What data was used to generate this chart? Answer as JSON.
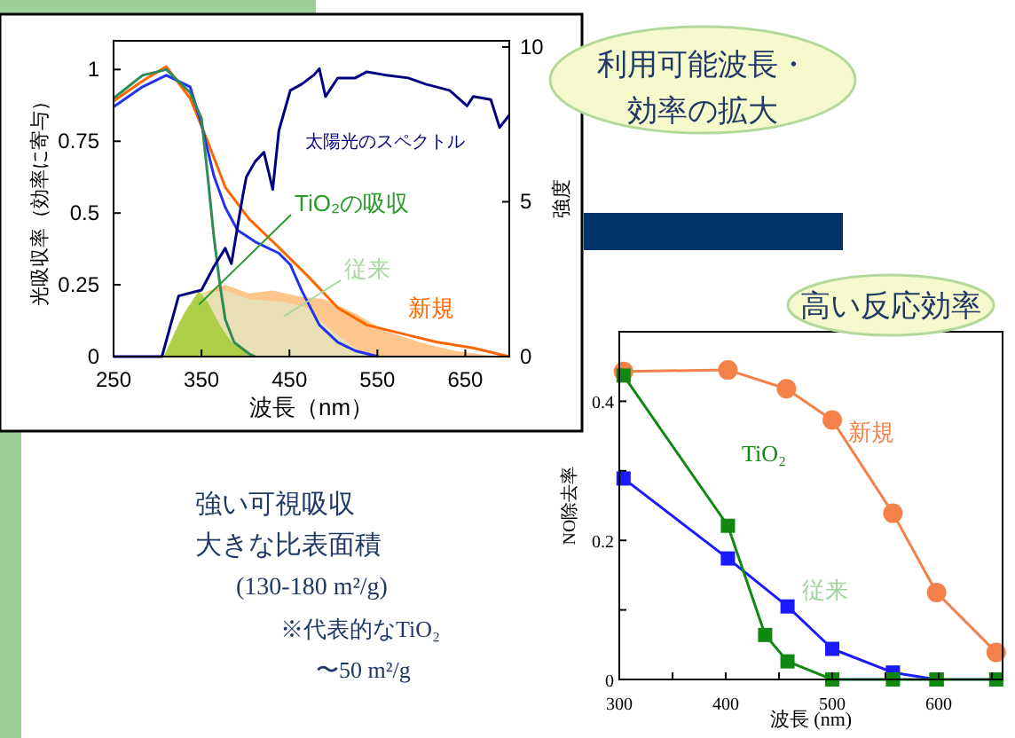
{
  "chart_data": [
    {
      "type": "line",
      "xlabel": "波長（nm）",
      "ylabel": "光吸収率（効率に寄与）",
      "y2label": "強度",
      "xlim": [
        250,
        700
      ],
      "xticks": [
        250,
        350,
        450,
        550,
        650
      ],
      "ylim": [
        0,
        1.1
      ],
      "yticks": [
        0,
        0.25,
        0.5,
        0.75,
        1
      ],
      "y2lim": [
        0,
        10.2
      ],
      "y2ticks": [
        0,
        5,
        10
      ],
      "grid": false,
      "legend": false,
      "series": [
        {
          "type": "area",
          "name": "新規",
          "color": "#fcc080",
          "x": [
            307,
            350,
            377,
            404,
            431,
            460,
            490,
            525,
            558,
            598,
            638,
            672,
            685
          ],
          "values": [
            0,
            0.22,
            0.25,
            0.22,
            0.23,
            0.21,
            0.2,
            0.15,
            0.09,
            0.05,
            0.02,
            0.006,
            0
          ]
        },
        {
          "type": "area",
          "name": "従来",
          "color": "#e6e2b8",
          "x": [
            307,
            324,
            350,
            377,
            404,
            444,
            471,
            498,
            525,
            545
          ],
          "values": [
            0,
            0.12,
            0.22,
            0.23,
            0.2,
            0.19,
            0.17,
            0.09,
            0.03,
            0
          ]
        },
        {
          "type": "area",
          "name": "TiO₂の吸収",
          "color": "#a8cc3c",
          "x": [
            307,
            330,
            347,
            357,
            371,
            384,
            404,
            411
          ],
          "values": [
            0,
            0.15,
            0.23,
            0.19,
            0.11,
            0.05,
            0.01,
            0
          ]
        },
        {
          "type": "line",
          "color": "#ff6600",
          "x": [
            250,
            283,
            310,
            337,
            357,
            377,
            404,
            438,
            471,
            505,
            538,
            578,
            618,
            659,
            686,
            700
          ],
          "values": [
            0.89,
            0.96,
            1.01,
            0.9,
            0.75,
            0.59,
            0.48,
            0.38,
            0.28,
            0.17,
            0.11,
            0.08,
            0.05,
            0.03,
            0.01,
            0
          ]
        },
        {
          "type": "line",
          "color": "#2233ee",
          "x": [
            250,
            283,
            310,
            337,
            350,
            364,
            377,
            391,
            411,
            438,
            451,
            464,
            484,
            505,
            525,
            551
          ],
          "values": [
            0.87,
            0.94,
            0.98,
            0.94,
            0.81,
            0.63,
            0.52,
            0.44,
            0.4,
            0.36,
            0.32,
            0.23,
            0.11,
            0.05,
            0.02,
            0
          ]
        },
        {
          "type": "line",
          "color": "#2e8b57",
          "x": [
            250,
            283,
            310,
            337,
            350,
            357,
            364,
            371,
            377,
            387,
            404,
            411
          ],
          "values": [
            0.9,
            0.98,
            1.0,
            0.92,
            0.83,
            0.63,
            0.42,
            0.25,
            0.13,
            0.05,
            0.01,
            0
          ]
        },
        {
          "type": "line",
          "name": "太陽光のスペクトル",
          "color": "#000080",
          "axis": "y2",
          "x": [
            250,
            305,
            324,
            350,
            364,
            377,
            384,
            391,
            397,
            401,
            411,
            421,
            431,
            438,
            451,
            464,
            478,
            484,
            491,
            505,
            525,
            538,
            558,
            585,
            605,
            632,
            652,
            659,
            679,
            689,
            700
          ],
          "values": [
            0,
            0,
            1.96,
            2.15,
            2.9,
            3.5,
            3.0,
            4.2,
            5.2,
            5.8,
            6.3,
            6.6,
            5.4,
            7.3,
            8.6,
            8.8,
            9.1,
            9.3,
            8.4,
            9.0,
            9.0,
            9.2,
            9.1,
            9.0,
            8.8,
            8.6,
            8.1,
            8.4,
            8.3,
            7.4,
            7.8
          ]
        }
      ]
    },
    {
      "type": "line",
      "xlabel": "波長 (nm)",
      "ylabel": "NO除去率",
      "xlim": [
        300,
        660
      ],
      "xticks": [
        300,
        {
          "value": 350,
          "label": null
        },
        400,
        {
          "value": 450,
          "label": null
        },
        500,
        {
          "value": 550,
          "label": null
        },
        600,
        {
          "value": 650,
          "label": null
        }
      ],
      "ylim": [
        0,
        0.5
      ],
      "yticks": [
        0,
        {
          "value": 0.1,
          "label": null
        },
        0.2,
        {
          "value": 0.3,
          "label": null
        },
        0.4
      ],
      "grid": false,
      "legend": false,
      "series": [
        {
          "name": "新規",
          "color": "#f4804a",
          "marker": "circle",
          "x": [
            304,
            402,
            457,
            500,
            557,
            598,
            654
          ],
          "values": [
            0.443,
            0.445,
            0.418,
            0.373,
            0.239,
            0.125,
            0.039
          ]
        },
        {
          "name": "従来",
          "color": "#1a1aff",
          "marker": "square",
          "x": [
            304,
            402,
            458,
            500,
            557,
            598
          ],
          "values": [
            0.289,
            0.174,
            0.105,
            0.044,
            0.01,
            0
          ]
        },
        {
          "name": "TiO₂",
          "color": "#118811",
          "marker": "square",
          "x": [
            304,
            402,
            437,
            458,
            500,
            557,
            598,
            654
          ],
          "values": [
            0.437,
            0.221,
            0.064,
            0.026,
            0,
            0,
            0,
            0
          ]
        }
      ]
    },
    {
      "type": "other",
      "annotations": [
        "利用可能波長・",
        "効率の拡大",
        "高い反応効率",
        "強い可視吸収",
        "大きな比表面積",
        "(130-180 m²/g)",
        "※代表的なTiO₂",
        "〜50 m²/g"
      ]
    }
  ]
}
